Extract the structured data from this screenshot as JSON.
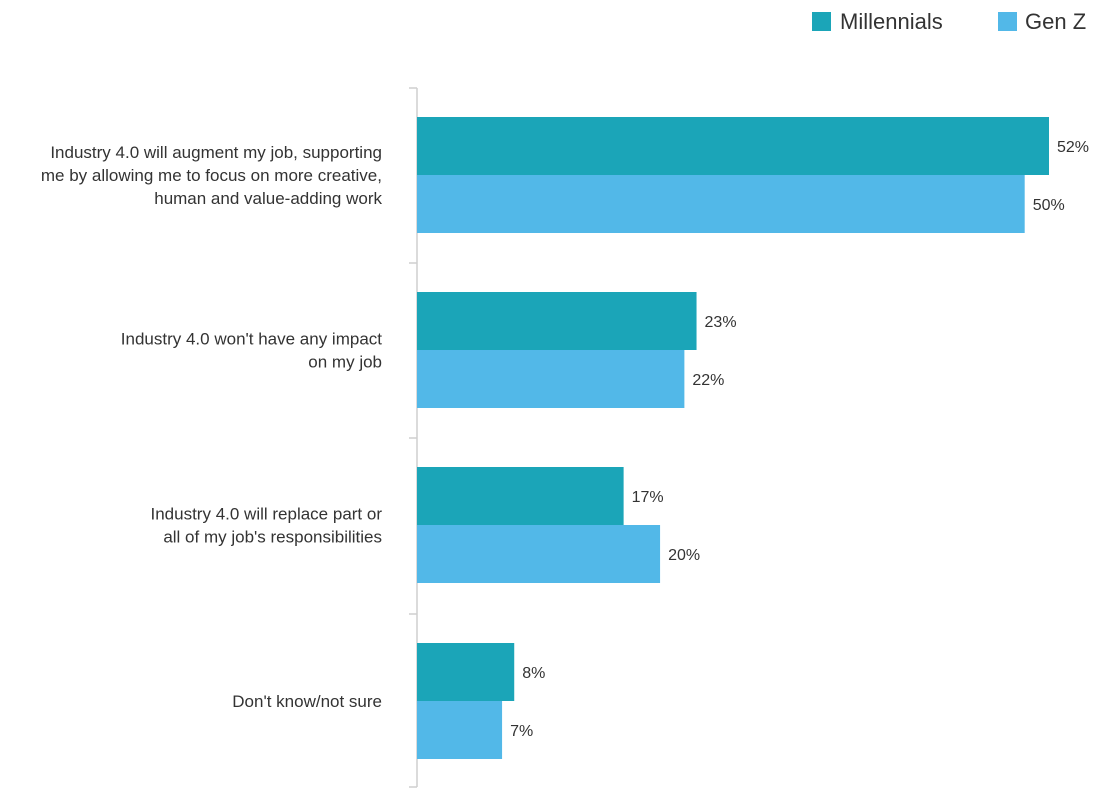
{
  "chart_data": {
    "type": "bar",
    "orientation": "horizontal",
    "title": "",
    "xlabel": "",
    "ylabel": "",
    "xlim": [
      0,
      52
    ],
    "grid": false,
    "legend_position": "top-right",
    "categories": [
      [
        "Industry 4.0 will augment my job, supporting",
        "me by allowing me to focus on more creative,",
        "human and value-adding work"
      ],
      [
        "Industry 4.0 won't have any impact",
        "on my job"
      ],
      [
        "Industry 4.0 will replace part or",
        "all of my job's responsibilities"
      ],
      [
        "Don't know/not sure"
      ]
    ],
    "series": [
      {
        "name": "Millennials",
        "color": "#1ba5b8",
        "values": [
          52,
          23,
          17,
          8
        ],
        "labels": [
          "52%",
          "23%",
          "17%",
          "8%"
        ]
      },
      {
        "name": "Gen Z",
        "color": "#52b8e8",
        "values": [
          50,
          22,
          20,
          7
        ],
        "labels": [
          "50%",
          "22%",
          "20%",
          "7%"
        ]
      }
    ]
  }
}
